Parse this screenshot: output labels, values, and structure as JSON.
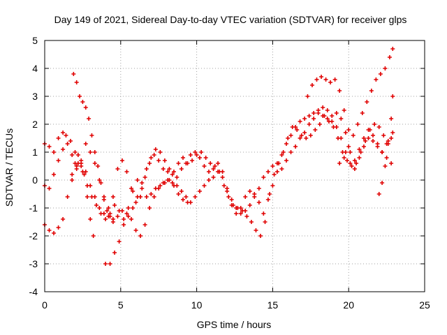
{
  "chart_data": {
    "type": "scatter",
    "title": "Day 149 of 2021, Sidereal Day-to-day VTEC variation (SDTVAR) for receiver glps",
    "xlabel": "GPS time / hours",
    "ylabel": "SDTVAR / TECUs",
    "xlim": [
      0,
      25
    ],
    "ylim": [
      -4,
      5
    ],
    "xticks": [
      "0",
      "5",
      "10",
      "15",
      "20",
      "25"
    ],
    "yticks": [
      "-4",
      "-3",
      "-2",
      "-1",
      "0",
      "1",
      "2",
      "3",
      "4",
      "5"
    ],
    "grid": true,
    "marker": "plus",
    "color": "#e00000",
    "series": [
      {
        "x": [
          0.0,
          0.3,
          0.6,
          0.9,
          1.2,
          1.4,
          1.7,
          2.0,
          2.2,
          2.5,
          2.8,
          3.1,
          3.4,
          3.7,
          4.0,
          4.3,
          4.6,
          4.9,
          5.2,
          5.5,
          5.8,
          6.1,
          6.4,
          6.7,
          7.0,
          7.3,
          7.6,
          7.9,
          8.2,
          8.5,
          8.8,
          9.1,
          9.4,
          9.7,
          10.0,
          10.3,
          10.6,
          10.9,
          11.2,
          11.5,
          11.8,
          12.1,
          12.4,
          12.7,
          13.0,
          13.3,
          13.6,
          13.9,
          14.2,
          14.5,
          14.8,
          15.1,
          15.4,
          15.7,
          16.0,
          16.3,
          16.6,
          16.9,
          17.2,
          17.5,
          17.8,
          18.1,
          18.4,
          18.7,
          19.0,
          19.3,
          19.6,
          19.9,
          20.2,
          20.5,
          20.8,
          21.1,
          21.4,
          21.7,
          22.0,
          22.3,
          22.6,
          22.9
        ],
        "y": [
          1.3,
          1.2,
          1.0,
          1.5,
          1.7,
          1.6,
          1.4,
          1.0,
          0.6,
          0.3,
          -0.2,
          -0.6,
          -0.9,
          -1.2,
          -1.4,
          -1.2,
          -0.9,
          -1.1,
          -1.4,
          -1.3,
          -1.0,
          -0.6,
          -0.1,
          0.4,
          0.8,
          1.1,
          1.0,
          0.7,
          0.4,
          0.3,
          0.6,
          0.8,
          0.6,
          0.7,
          0.9,
          1.0,
          0.8,
          0.6,
          0.5,
          0.3,
          -0.2,
          -0.6,
          -0.9,
          -1.0,
          -1.1,
          -1.3,
          -1.5,
          -1.8,
          -2.0,
          -1.5,
          -0.5,
          0.2,
          0.6,
          1.0,
          1.5,
          1.9,
          1.8,
          1.6,
          1.5,
          1.6,
          1.8,
          2.0,
          2.3,
          2.1,
          1.9,
          1.5,
          1.0,
          0.7,
          0.5,
          0.6,
          1.0,
          1.4,
          1.8,
          2.0,
          1.9,
          1.6,
          1.4,
          1.7
        ]
      },
      {
        "x": [
          0.0,
          0.3,
          0.6,
          0.9,
          1.2,
          1.5,
          1.8,
          2.1,
          2.4,
          2.7,
          3.0,
          3.3,
          3.6,
          3.9,
          4.2,
          4.5,
          4.8,
          5.1,
          5.4,
          5.7,
          6.0,
          6.3,
          6.6,
          6.9,
          7.2,
          7.5,
          7.8,
          8.1,
          8.4,
          8.7,
          9.0,
          9.3,
          9.6,
          9.9,
          10.2,
          10.5,
          10.8,
          11.1,
          11.4,
          11.7,
          12.0,
          12.3,
          12.6,
          12.9,
          13.2,
          13.5,
          13.8,
          14.1,
          14.4,
          14.7,
          15.0,
          15.3,
          15.6,
          15.9,
          16.2,
          16.5,
          16.8,
          17.1,
          17.4,
          17.7,
          18.0,
          18.3,
          18.6,
          18.9,
          19.2,
          19.5,
          19.8,
          20.1,
          20.4,
          20.7,
          21.0,
          21.3,
          21.6,
          21.9,
          22.2,
          22.5,
          22.8
        ],
        "y": [
          -1.6,
          -1.8,
          -1.9,
          -1.7,
          -1.4,
          -0.6,
          0.2,
          0.5,
          0.6,
          0.3,
          -0.2,
          -0.6,
          -1.0,
          -1.2,
          -1.3,
          -1.5,
          -1.3,
          -1.1,
          -1.2,
          -1.4,
          -1.8,
          -2.0,
          -1.6,
          -1.0,
          -0.6,
          -0.3,
          -0.1,
          0.0,
          -0.1,
          -0.2,
          -0.4,
          -0.6,
          -0.8,
          -0.6,
          -0.4,
          -0.2,
          0.0,
          0.1,
          0.3,
          0.1,
          -0.3,
          -0.7,
          -1.0,
          -1.2,
          -1.1,
          -0.9,
          -0.6,
          -0.3,
          0.1,
          0.3,
          0.5,
          0.6,
          0.9,
          1.3,
          1.6,
          1.9,
          2.1,
          2.2,
          2.3,
          2.4,
          2.5,
          2.6,
          2.5,
          2.3,
          2.4,
          2.2,
          1.7,
          1.0,
          0.7,
          1.1,
          1.5,
          1.8,
          1.6,
          1.3,
          1.0,
          1.3,
          1.5
        ]
      },
      {
        "x": [
          0.0,
          0.3,
          0.6,
          0.9,
          1.2,
          1.5,
          1.8,
          2.1,
          2.4,
          2.7,
          3.0,
          3.3,
          3.6,
          3.9,
          4.2,
          4.5,
          4.8,
          5.1,
          5.4,
          5.7,
          6.0,
          6.3,
          6.6,
          6.9,
          7.2,
          7.5,
          7.8,
          8.1,
          8.4,
          8.7,
          9.0,
          9.3,
          9.6,
          9.9,
          10.2,
          10.5,
          10.8,
          11.1,
          11.4,
          11.7,
          12.0,
          12.3,
          12.6,
          12.9,
          13.2,
          13.5,
          13.8,
          14.1,
          14.4,
          14.7,
          15.0,
          15.3,
          15.6,
          15.9,
          16.2,
          16.5,
          16.8,
          17.1,
          17.4,
          17.7,
          18.0,
          18.3,
          18.6,
          18.9,
          19.2,
          19.5,
          19.8,
          20.1,
          20.4,
          20.7,
          21.0,
          21.3,
          21.6,
          21.9,
          22.2,
          22.5,
          22.8
        ],
        "y": [
          -0.2,
          -0.3,
          0.2,
          0.7,
          1.1,
          1.3,
          0.9,
          0.4,
          0.5,
          1.3,
          1.0,
          0.6,
          0.0,
          -0.6,
          -1.0,
          -0.6,
          0.4,
          0.7,
          0.3,
          -0.3,
          -0.8,
          -0.6,
          0.1,
          0.6,
          0.9,
          0.7,
          0.4,
          0.3,
          0.2,
          0.1,
          0.4,
          0.6,
          0.9,
          1.0,
          0.8,
          0.5,
          0.3,
          0.4,
          0.6,
          0.3,
          -0.4,
          -0.9,
          -1.2,
          -1.0,
          -0.6,
          -0.4,
          -0.5,
          -0.8,
          -1.2,
          -0.7,
          -0.2,
          0.3,
          0.4,
          0.7,
          1.0,
          1.2,
          1.5,
          1.7,
          2.0,
          2.2,
          2.4,
          2.3,
          2.2,
          2.1,
          1.9,
          1.5,
          1.0,
          0.6,
          0.4,
          0.8,
          1.2,
          1.5,
          1.4,
          1.2,
          1.0,
          0.8,
          0.6
        ]
      },
      {
        "x": [
          1.9,
          2.1,
          2.3,
          2.5,
          2.7,
          2.9,
          3.1,
          3.3,
          3.5,
          3.7,
          3.9,
          4.1,
          4.3,
          4.5
        ],
        "y": [
          3.8,
          3.5,
          3.0,
          2.8,
          2.6,
          2.2,
          1.6,
          1.0,
          0.5,
          -0.1,
          -0.7,
          -1.1,
          -1.3,
          -1.4
        ]
      },
      {
        "x": [
          4.0,
          4.3,
          4.6,
          4.9,
          5.2,
          5.5,
          5.8,
          6.1,
          6.4,
          6.7,
          7.0,
          7.3,
          7.6,
          7.9,
          8.2,
          8.5,
          8.8,
          9.1,
          9.4
        ],
        "y": [
          -3.0,
          -3.0,
          -2.6,
          -2.2,
          -1.6,
          -1.0,
          -0.4,
          0.0,
          -0.3,
          -0.6,
          -0.5,
          -0.3,
          -0.2,
          -0.1,
          0.0,
          -0.2,
          -0.5,
          -0.7,
          -0.8
        ]
      },
      {
        "x": [
          1.8,
          2.0,
          2.2,
          2.4,
          2.6,
          2.8,
          3.0,
          3.2
        ],
        "y": [
          0.0,
          0.6,
          0.9,
          0.7,
          0.2,
          -0.6,
          -1.4,
          -2.0
        ]
      },
      {
        "x": [
          17.3,
          17.6,
          17.9,
          18.2,
          18.5,
          18.8,
          19.1,
          19.4,
          19.7,
          20.0
        ],
        "y": [
          3.0,
          3.4,
          3.6,
          3.7,
          3.6,
          3.5,
          3.6,
          3.2,
          2.5,
          1.8
        ]
      },
      {
        "x": [
          19.4,
          19.7,
          20.0,
          20.3,
          20.6,
          20.9,
          21.2,
          21.5,
          21.8,
          22.1,
          22.4,
          22.7,
          22.9
        ],
        "y": [
          0.6,
          0.8,
          1.2,
          1.6,
          2.0,
          2.4,
          2.8,
          3.2,
          3.6,
          3.8,
          4.0,
          4.4,
          4.7
        ]
      },
      {
        "x": [
          22.0,
          22.2,
          22.4,
          22.6,
          22.8,
          22.9
        ],
        "y": [
          -0.5,
          -0.1,
          0.5,
          1.3,
          2.2,
          3.0
        ]
      }
    ]
  }
}
